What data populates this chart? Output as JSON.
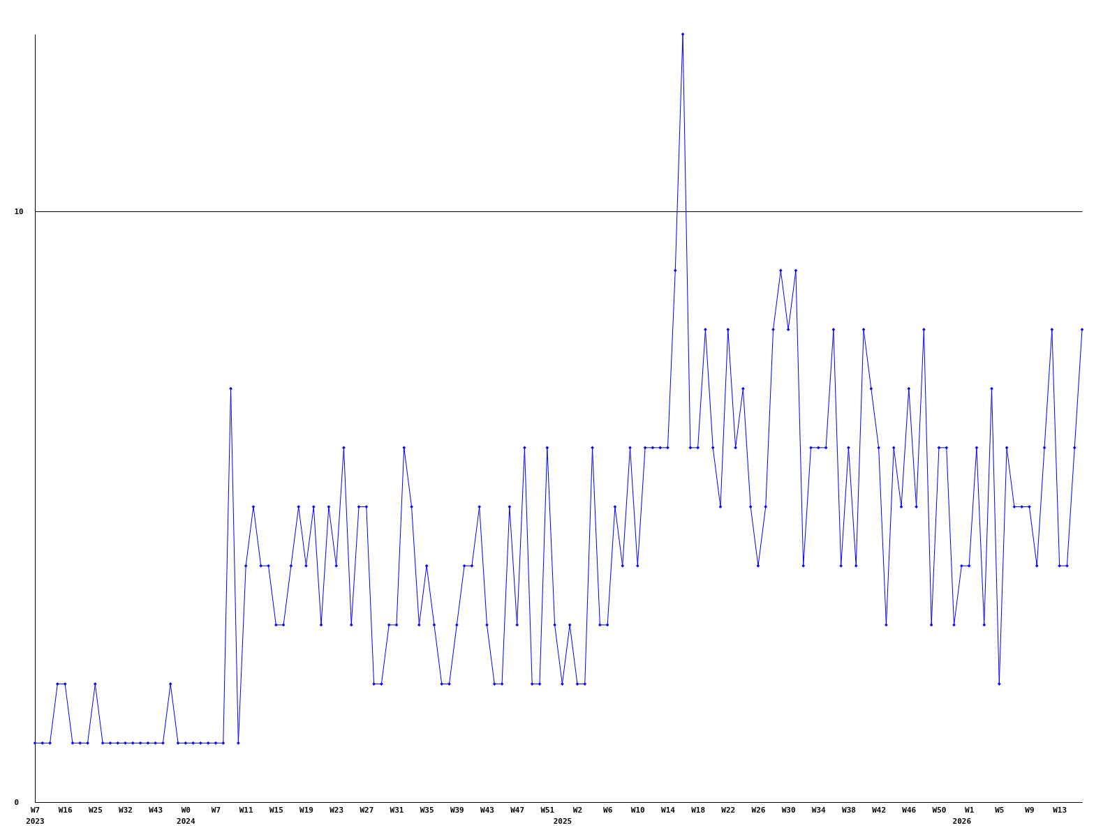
{
  "chart_data": {
    "type": "line",
    "categories": [
      "W7\n2023",
      null,
      null,
      null,
      "W16",
      null,
      null,
      null,
      "W25",
      null,
      null,
      null,
      "W32",
      null,
      null,
      null,
      "W43",
      null,
      null,
      null,
      "W0\n2024",
      null,
      null,
      null,
      "W7",
      null,
      null,
      null,
      "W11",
      null,
      null,
      null,
      "W15",
      null,
      null,
      null,
      "W19",
      null,
      null,
      null,
      "W23",
      null,
      null,
      null,
      "W27",
      null,
      null,
      null,
      "W31",
      null,
      null,
      null,
      "W35",
      null,
      null,
      null,
      "W39",
      null,
      null,
      null,
      "W43",
      null,
      null,
      null,
      "W47",
      null,
      null,
      null,
      "W51",
      null,
      "\n2025",
      null,
      "W2",
      null,
      null,
      null,
      "W6",
      null,
      null,
      null,
      "W10",
      null,
      null,
      null,
      "W14",
      null,
      null,
      null,
      "W18",
      null,
      null,
      null,
      "W22",
      null,
      null,
      null,
      "W26",
      null,
      null,
      null,
      "W30",
      null,
      null,
      null,
      "W34",
      null,
      null,
      null,
      "W38",
      null,
      null,
      null,
      "W42",
      null,
      null,
      null,
      "W46",
      null,
      null,
      null,
      "W50",
      null,
      null,
      "\n2026",
      "W1",
      null,
      null,
      null,
      "W5",
      null,
      null,
      null,
      "W9",
      null,
      null,
      null,
      "W13",
      null,
      null,
      null
    ],
    "series": [
      {
        "color": "#0000ff",
        "values": [
          1,
          1,
          1,
          2,
          2,
          1,
          1,
          1,
          2,
          1,
          1,
          1,
          1,
          1,
          1,
          1,
          1,
          1,
          2,
          1,
          1,
          1,
          1,
          1,
          1,
          1,
          7,
          1,
          4,
          5,
          4,
          4,
          3,
          3,
          4,
          5,
          4,
          5,
          3,
          5,
          4,
          6,
          3,
          5,
          5,
          2,
          2,
          3,
          3,
          6,
          5,
          3,
          4,
          3,
          2,
          2,
          3,
          4,
          4,
          5,
          3,
          2,
          2,
          5,
          3,
          6,
          2,
          2,
          6,
          3,
          2,
          3,
          2,
          2,
          6,
          3,
          3,
          5,
          4,
          6,
          4,
          6,
          6,
          6,
          6,
          9,
          13,
          6,
          6,
          8,
          6,
          5,
          8,
          6,
          7,
          5,
          4,
          5,
          8,
          9,
          8,
          9,
          4,
          6,
          6,
          6,
          8,
          4,
          6,
          4,
          8,
          7,
          6,
          3,
          6,
          5,
          7,
          5,
          8,
          3,
          6,
          6,
          3,
          4,
          4,
          6,
          3,
          7,
          2,
          6,
          5,
          5,
          5,
          4,
          6,
          8,
          4,
          4,
          6,
          8
        ]
      }
    ],
    "ylim": [
      0,
      13
    ],
    "yticks": [
      0,
      10
    ],
    "grid": "y",
    "marker": "diamond",
    "line_style": "solid"
  }
}
